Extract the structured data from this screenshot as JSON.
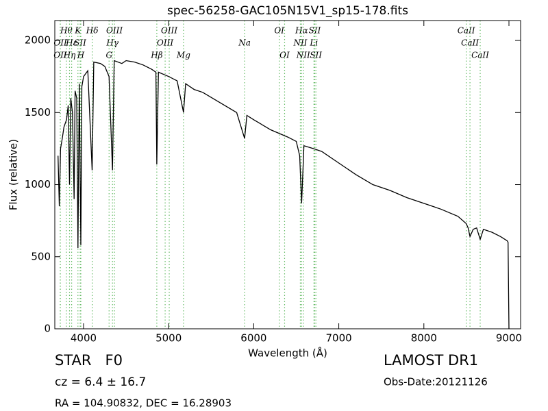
{
  "chart_data": {
    "type": "line",
    "title": "spec-56258-GAC105N15V1_sp15-178.fits",
    "x_label": "Wavelength (Å)",
    "y_label": "Flux (relative)",
    "xlim": [
      3662,
      9137
    ],
    "ylim": [
      0,
      2138
    ],
    "xticks": [
      4000,
      5000,
      6000,
      7000,
      8000,
      9000
    ],
    "yticks": [
      0,
      500,
      1000,
      1500,
      2000
    ],
    "color": "#000000",
    "line_color": "#66bb66",
    "x": [
      3700,
      3715,
      3730,
      3750,
      3770,
      3800,
      3820,
      3835,
      3850,
      3870,
      3889,
      3900,
      3920,
      3934,
      3950,
      3968,
      3980,
      4000,
      4050,
      4101,
      4120,
      4200,
      4250,
      4300,
      4340,
      4360,
      4450,
      4500,
      4600,
      4700,
      4800,
      4850,
      4861,
      4880,
      5000,
      5100,
      5175,
      5200,
      5300,
      5400,
      5600,
      5800,
      5893,
      5920,
      6000,
      6200,
      6400,
      6500,
      6540,
      6563,
      6590,
      6700,
      6800,
      7000,
      7200,
      7400,
      7600,
      7800,
      8000,
      8200,
      8400,
      8498,
      8520,
      8542,
      8580,
      8620,
      8662,
      8700,
      8800,
      8900,
      8980,
      8990,
      9000
    ],
    "values": [
      1200,
      850,
      1250,
      1320,
      1400,
      1450,
      1550,
      1000,
      1600,
      1500,
      900,
      1650,
      1600,
      560,
      1700,
      580,
      1680,
      1750,
      1790,
      1100,
      1850,
      1840,
      1820,
      1750,
      1100,
      1860,
      1840,
      1860,
      1850,
      1830,
      1800,
      1780,
      1140,
      1780,
      1750,
      1720,
      1500,
      1700,
      1660,
      1640,
      1570,
      1500,
      1320,
      1480,
      1450,
      1380,
      1330,
      1300,
      1200,
      870,
      1270,
      1250,
      1230,
      1150,
      1070,
      1000,
      960,
      910,
      870,
      830,
      780,
      730,
      700,
      640,
      690,
      700,
      620,
      690,
      670,
      640,
      610,
      600,
      0
    ],
    "lines": [
      {
        "label": "Hθ",
        "wavelength": 3798
      },
      {
        "label": "K",
        "wavelength": 3934
      },
      {
        "label": "Hδ",
        "wavelength": 4102
      },
      {
        "label": "OIII",
        "wavelength": 4363
      },
      {
        "label": "OIII",
        "wavelength": 5007
      },
      {
        "label": "OI",
        "wavelength": 6300
      },
      {
        "label": "Hα",
        "wavelength": 6563
      },
      {
        "label": "SII",
        "wavelength": 6717
      },
      {
        "label": "CaII",
        "wavelength": 8498
      },
      {
        "label": "OII",
        "wavelength": 3727
      },
      {
        "label": "Hε",
        "wavelength": 3860
      },
      {
        "label": "SII",
        "wavelength": 3960
      },
      {
        "label": "Hγ",
        "wavelength": 4340
      },
      {
        "label": "OIII",
        "wavelength": 4959
      },
      {
        "label": "Na",
        "wavelength": 5893
      },
      {
        "label": "NII",
        "wavelength": 6548
      },
      {
        "label": "Li",
        "wavelength": 6708
      },
      {
        "label": "CaII",
        "wavelength": 8542
      },
      {
        "label": "OII",
        "wavelength": 3726
      },
      {
        "label": "Hη",
        "wavelength": 3835
      },
      {
        "label": "H",
        "wavelength": 3968
      },
      {
        "label": "G",
        "wavelength": 4300
      },
      {
        "label": "Hβ",
        "wavelength": 4861
      },
      {
        "label": "Mg",
        "wavelength": 5175
      },
      {
        "label": "OI",
        "wavelength": 6363
      },
      {
        "label": "NII",
        "wavelength": 6583
      },
      {
        "label": "SII",
        "wavelength": 6731
      },
      {
        "label": "CaII",
        "wavelength": 8662
      }
    ]
  },
  "info": {
    "object": "STAR   F0",
    "survey": "LAMOST DR1",
    "redshift": "cz = 6.4 ± 16.7",
    "obs_date": "Obs-Date:20121126",
    "coords": "RA = 104.90832, DEC = 16.28903"
  }
}
